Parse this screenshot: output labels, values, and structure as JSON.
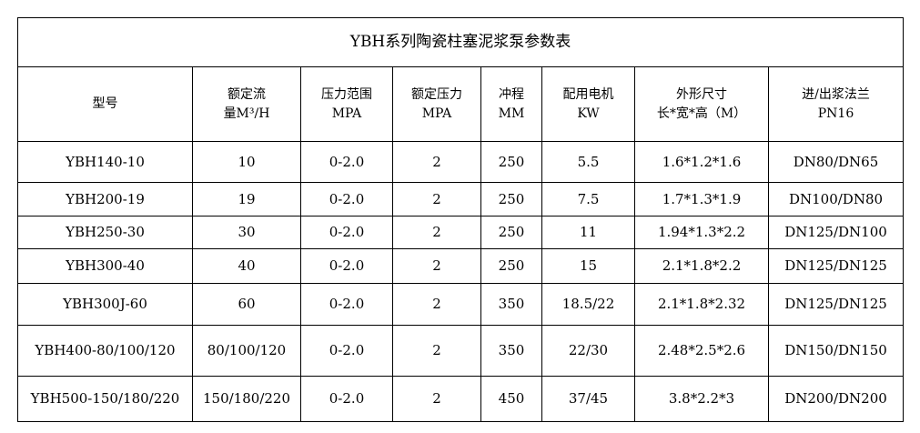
{
  "title": "YBH系列陶瓷柱塞泥浆泵参数表",
  "headers": [
    {
      "line1": "型号",
      "line2": ""
    },
    {
      "line1": "额定流",
      "line2": "量M³/H"
    },
    {
      "line1": "压力范围",
      "line2": "MPA"
    },
    {
      "line1": "额定压力",
      "line2": "MPA"
    },
    {
      "line1": "冲程",
      "line2": "MM"
    },
    {
      "line1": "配用电机",
      "line2": "KW"
    },
    {
      "line1": "外形尺寸",
      "line2": "长*宽*高（M）"
    },
    {
      "line1": "进/出浆法兰",
      "line2": "PN16"
    }
  ],
  "rows": [
    [
      "YBH140-10",
      "10",
      "0-2.0",
      "2",
      "250",
      "5.5",
      "1.6*1.2*1.6",
      "DN80/DN65"
    ],
    [
      "YBH200-19",
      "19",
      "0-2.0",
      "2",
      "250",
      "7.5",
      "1.7*1.3*1.9",
      "DN100/DN80"
    ],
    [
      "YBH250-30",
      "30",
      "0-2.0",
      "2",
      "250",
      "11",
      "1.94*1.3*2.2",
      "DN125/DN100"
    ],
    [
      "YBH300-40",
      "40",
      "0-2.0",
      "2",
      "250",
      "15",
      "2.1*1.8*2.2",
      "DN125/DN125"
    ],
    [
      "YBH300J-60",
      "60",
      "0-2.0",
      "2",
      "350",
      "18.5/22",
      "2.1*1.8*2.32",
      "DN125/DN125"
    ],
    [
      "YBH400-80/100/120",
      "80/100/120",
      "0-2.0",
      "2",
      "350",
      "22/30",
      "2.48*2.5*2.6",
      "DN150/DN150"
    ],
    [
      "YBH500-150/180/220",
      "150/180/220",
      "0-2.0",
      "2",
      "450",
      "37/45",
      "3.8*2.2*3",
      "DN200/DN200"
    ]
  ]
}
